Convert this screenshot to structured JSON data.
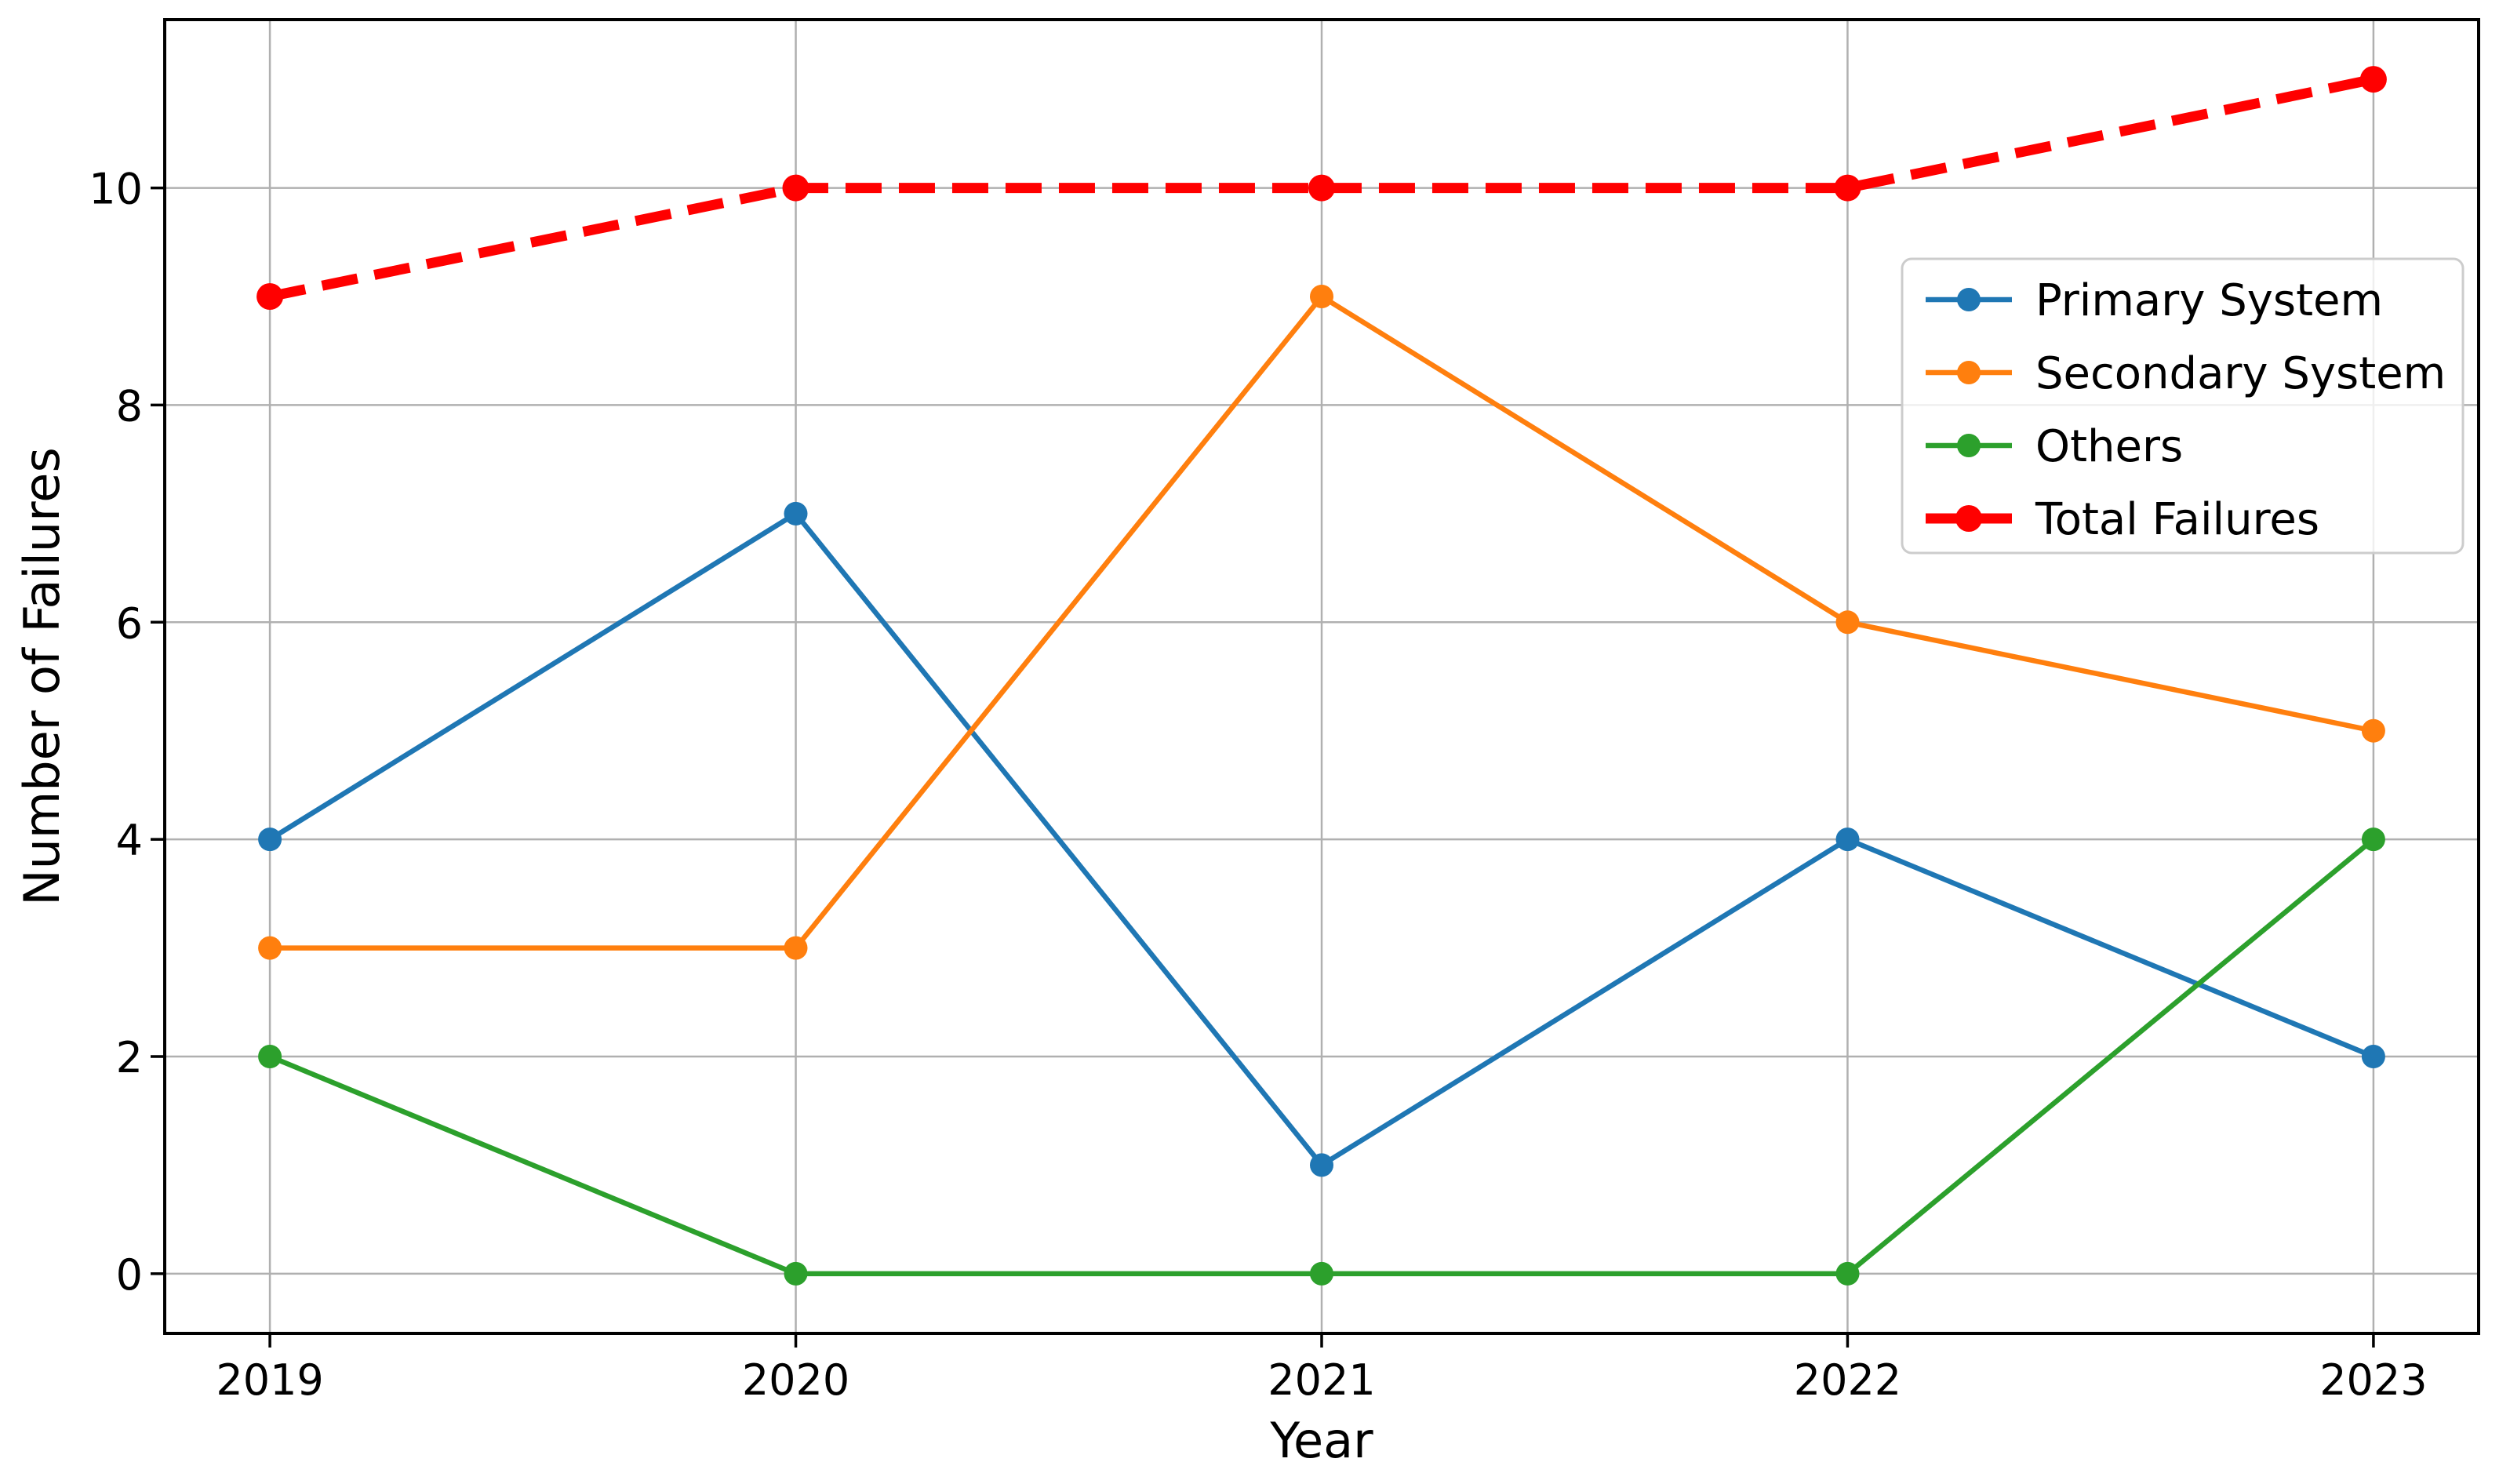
{
  "chart_data": {
    "type": "line",
    "title": "",
    "xlabel": "Year",
    "ylabel": "Number of Failures",
    "x": [
      2019,
      2020,
      2021,
      2022,
      2023
    ],
    "x_tick_labels": [
      "2019",
      "2020",
      "2021",
      "2022",
      "2023"
    ],
    "y_ticks": [
      0,
      2,
      4,
      6,
      8,
      10
    ],
    "y_tick_labels": [
      "0",
      "2",
      "4",
      "6",
      "8",
      "10"
    ],
    "xlim": [
      2018.8,
      2023.2
    ],
    "ylim": [
      -0.55,
      11.55
    ],
    "grid": true,
    "legend_position": "upper-right-inside",
    "series": [
      {
        "name": "Primary System",
        "color": "#1f77b4",
        "line_style": "solid",
        "line_width": 6.5,
        "marker": "circle",
        "marker_radius": 15,
        "values": [
          4,
          7,
          1,
          4,
          2
        ]
      },
      {
        "name": "Secondary System",
        "color": "#ff7f0e",
        "line_style": "solid",
        "line_width": 6.5,
        "marker": "circle",
        "marker_radius": 15,
        "values": [
          3,
          3,
          9,
          6,
          5
        ]
      },
      {
        "name": "Others",
        "color": "#2ca02c",
        "line_style": "solid",
        "line_width": 6.5,
        "marker": "circle",
        "marker_radius": 15,
        "values": [
          2,
          0,
          0,
          0,
          4
        ]
      },
      {
        "name": "Total Failures",
        "color": "#ff0000",
        "line_style": "dashed",
        "dash_pattern": [
          46,
          22
        ],
        "line_width": 13,
        "marker": "circle",
        "marker_radius": 17,
        "values": [
          9,
          10,
          10,
          10,
          11
        ]
      }
    ],
    "legend": {
      "entries": [
        "Primary System",
        "Secondary System",
        "Others",
        "Total Failures"
      ],
      "border_color": "#cccccc",
      "background_color": "#ffffff",
      "background_opacity": 0.8
    },
    "styles": {
      "grid_color": "#b0b0b0",
      "grid_width": 2.5,
      "spine_color": "#000000",
      "spine_width": 4,
      "tick_color": "#000000",
      "tick_length": 18,
      "tick_width": 3.5,
      "tick_font_px": 54,
      "axis_label_font_px": 62,
      "legend_font_px": 56,
      "background": "#ffffff"
    }
  }
}
